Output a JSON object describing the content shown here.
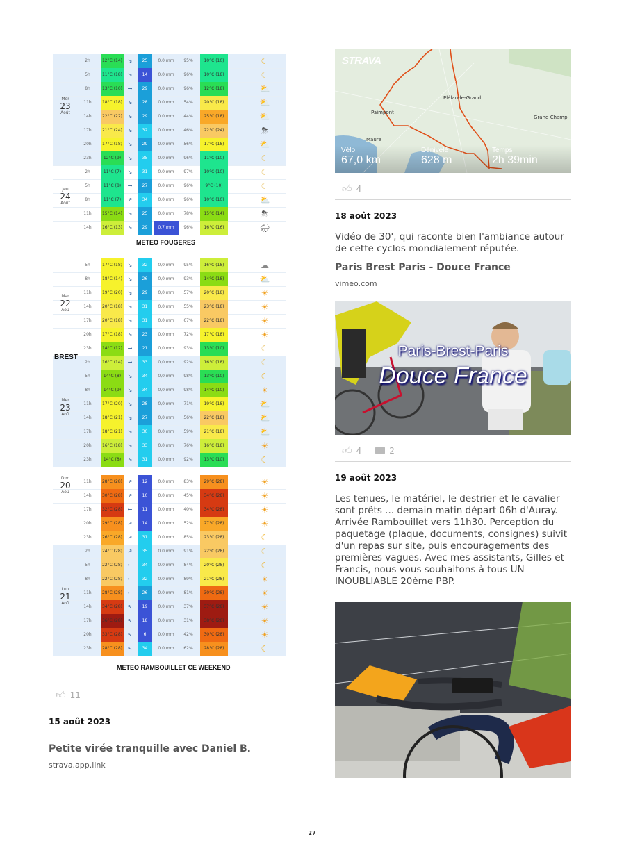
{
  "weather_tables": [
    {
      "id": "fougeres",
      "caption": "METEO FOUGERES",
      "days": [
        {
          "day": "Mer",
          "num": "23",
          "month": "Août",
          "shaded": true,
          "rows": [
            [
              "2h",
              "12°C (14)",
              "↘",
              "25",
              "0.0 mm",
              "95%",
              "10°C (10)",
              "moon"
            ],
            [
              "5h",
              "11°C (18)",
              "↘",
              "14",
              "0.0 mm",
              "96%",
              "10°C (18)",
              "moon-cloud"
            ],
            [
              "8h",
              "13°C (10)",
              "→",
              "29",
              "0.0 mm",
              "96%",
              "12°C (18)",
              "sun-cloud"
            ],
            [
              "11h",
              "18°C (18)",
              "↘",
              "28",
              "0.0 mm",
              "54%",
              "20°C (18)",
              "sun-cloud"
            ],
            [
              "14h",
              "22°C (22)",
              "↘",
              "29",
              "0.0 mm",
              "44%",
              "25°C (18)",
              "sun-cloud"
            ],
            [
              "17h",
              "21°C (24)",
              "↘",
              "32",
              "0.0 mm",
              "46%",
              "22°C (24)",
              "storm-cloud"
            ],
            [
              "20h",
              "17°C (18)",
              "↘",
              "29",
              "0.0 mm",
              "56%",
              "17°C (18)",
              "sun-cloud"
            ],
            [
              "23h",
              "12°C (9)",
              "↘",
              "35",
              "0.0 mm",
              "96%",
              "11°C (10)",
              "moon-cloud"
            ]
          ]
        },
        {
          "day": "Jeu",
          "num": "24",
          "month": "Août",
          "shaded": false,
          "rows": [
            [
              "2h",
              "11°C (7)",
              "↘",
              "31",
              "0.0 mm",
              "97%",
              "10°C (10)",
              "moon-cloud"
            ],
            [
              "5h",
              "11°C (8)",
              "→",
              "27",
              "0.0 mm",
              "96%",
              "9°C (10)",
              "moon-cloud"
            ],
            [
              "8h",
              "11°C (7)",
              "↗",
              "34",
              "0.0 mm",
              "96%",
              "10°C (10)",
              "sun-cloud"
            ],
            [
              "11h",
              "15°C (14)",
              "↘",
              "25",
              "0.0 mm",
              "78%",
              "15°C (14)",
              "storm-cloud"
            ],
            [
              "14h",
              "16°C (13)",
              "↘",
              "29",
              "0.7 mm",
              "96%",
              "16°C (16)",
              "rain-cloud"
            ]
          ]
        }
      ]
    },
    {
      "id": "brest",
      "caption": "BREST",
      "days": [
        {
          "day": "Mar",
          "num": "22",
          "month": "Aoû",
          "shaded": false,
          "rows": [
            [
              "5h",
              "17°C (18)",
              "↘",
              "32",
              "0,0 mm",
              "95%",
              "16°C (18)",
              "cloud"
            ],
            [
              "8h",
              "18°C (14)",
              "↘",
              "26",
              "0,0 mm",
              "93%",
              "14°C (18)",
              "sun-cloud"
            ],
            [
              "11h",
              "19°C (20)",
              "↘",
              "29",
              "0,0 mm",
              "57%",
              "20°C (18)",
              "sun"
            ],
            [
              "14h",
              "20°C (18)",
              "↘",
              "31",
              "0,0 mm",
              "55%",
              "23°C (18)",
              "sun"
            ],
            [
              "17h",
              "20°C (18)",
              "↘",
              "31",
              "0,0 mm",
              "67%",
              "22°C (18)",
              "sun"
            ],
            [
              "20h",
              "17°C (18)",
              "↘",
              "23",
              "0,0 mm",
              "72%",
              "17°C (18)",
              "sun"
            ],
            [
              "23h",
              "14°C (12)",
              "→",
              "21",
              "0,0 mm",
              "93%",
              "13°C (10)",
              "moon-cloud"
            ]
          ]
        },
        {
          "day": "Mer",
          "num": "23",
          "month": "Aoû",
          "shaded": true,
          "rows": [
            [
              "2h",
              "16°C (14)",
              "→",
              "33",
              "0,0 mm",
              "92%",
              "16°C (18)",
              "moon-cloud"
            ],
            [
              "5h",
              "14°C (8)",
              "↘",
              "34",
              "0,0 mm",
              "98%",
              "13°C (10)",
              "moon"
            ],
            [
              "8h",
              "14°C (9)",
              "↘",
              "34",
              "0,0 mm",
              "98%",
              "14°C (10)",
              "sun"
            ],
            [
              "11h",
              "17°C (20)",
              "↘",
              "28",
              "0,0 mm",
              "71%",
              "19°C (18)",
              "sun-cloud"
            ],
            [
              "14h",
              "18°C (21)",
              "↘",
              "27",
              "0,0 mm",
              "56%",
              "22°C (18)",
              "sun-cloud"
            ],
            [
              "17h",
              "18°C (21)",
              "↘",
              "30",
              "0,0 mm",
              "59%",
              "21°C (18)",
              "sun-cloud"
            ],
            [
              "20h",
              "16°C (18)",
              "↘",
              "33",
              "0,0 mm",
              "76%",
              "16°C (18)",
              "sun"
            ],
            [
              "23h",
              "14°C (8)",
              "↘",
              "31",
              "0,0 mm",
              "92%",
              "13°C (10)",
              "moon"
            ]
          ]
        }
      ]
    },
    {
      "id": "rambouillet",
      "caption": "METEO RAMBOUILLET CE WEEKEND",
      "days": [
        {
          "day": "Dim",
          "num": "20",
          "month": "Aoû",
          "shaded": false,
          "rows": [
            [
              "11h",
              "28°C (28)",
              "↗",
              "12",
              "0.0 mm",
              "83%",
              "29°C (28)",
              "sun"
            ],
            [
              "14h",
              "30°C (28)",
              "↗",
              "10",
              "0.0 mm",
              "45%",
              "34°C (28)",
              "sun"
            ],
            [
              "17h",
              "32°C (28)",
              "←",
              "11",
              "0.0 mm",
              "40%",
              "34°C (28)",
              "sun"
            ],
            [
              "20h",
              "29°C (28)",
              "↗",
              "14",
              "0.0 mm",
              "52%",
              "27°C (28)",
              "sun"
            ],
            [
              "23h",
              "26°C (28)",
              "↗",
              "31",
              "0.0 mm",
              "85%",
              "23°C (28)",
              "moon"
            ]
          ]
        },
        {
          "day": "Lun",
          "num": "21",
          "month": "Aoû",
          "shaded": true,
          "rows": [
            [
              "2h",
              "24°C (28)",
              "↗",
              "35",
              "0.0 mm",
              "91%",
              "22°C (28)",
              "moon-cloud"
            ],
            [
              "5h",
              "22°C (28)",
              "←",
              "34",
              "0.0 mm",
              "84%",
              "20°C (28)",
              "moon"
            ],
            [
              "8h",
              "22°C (28)",
              "←",
              "32",
              "0.0 mm",
              "89%",
              "21°C (28)",
              "sun"
            ],
            [
              "11h",
              "28°C (28)",
              "←",
              "26",
              "0.0 mm",
              "81%",
              "30°C (28)",
              "sun"
            ],
            [
              "14h",
              "34°C (28)",
              "↖",
              "19",
              "0.0 mm",
              "37%",
              "37°C (28)",
              "sun"
            ],
            [
              "17h",
              "36°C (28)",
              "↖",
              "18",
              "0.0 mm",
              "31%",
              "38°C (28)",
              "sun"
            ],
            [
              "20h",
              "33°C (28)",
              "↖",
              "6",
              "0.0 mm",
              "42%",
              "30°C (28)",
              "sun"
            ],
            [
              "23h",
              "28°C (28)",
              "↖",
              "34",
              "0.0 mm",
              "62%",
              "28°C (28)",
              "moon"
            ]
          ]
        }
      ]
    }
  ],
  "left_post": {
    "likes": "11",
    "date": "15 août 2023",
    "link_title": "Petite virée tranquille avec Daniel B.",
    "link_domain": "strava.app.link"
  },
  "strava": {
    "logo": "STRAVA",
    "places": [
      "Plélan-le-Grand",
      "Paimpont",
      "Grand Champ",
      "Maure"
    ],
    "stats": [
      {
        "label": "Vélo",
        "value": "67,0 km"
      },
      {
        "label": "Dénivelé",
        "value": "628 m"
      },
      {
        "label": "Temps",
        "value": "2h 39min"
      }
    ],
    "likes": "4"
  },
  "post_18": {
    "date": "18 août 2023",
    "body": "Vidéo de 30', qui raconte bien l'ambiance autour de cette cyclos mondialement réputée.",
    "link_title": "Paris Brest Paris - Douce France",
    "link_domain": "vimeo.com",
    "video_title_1": "Paris-Brest-Paris",
    "video_title_2": "Douce France",
    "likes": "4",
    "comments": "2"
  },
  "post_19": {
    "date": "19 août 2023",
    "body": "Les tenues, le matériel, le destrier et le cavalier sont prêts ... demain matin départ 06h d'Auray. Arrivée Rambouillet vers 11h30. Perception du paquetage (plaque, documents, consignes) suivit d'un repas sur site, puis encouragements des premières vagues. Avec mes assistants, Gilles et Francis, nous vous souhaitons à tous UN INOUBLIABLE 20ème PBP."
  },
  "page_number": "27",
  "colors": {
    "route": "#e0501a",
    "shade": "#e3eefa",
    "text": "#444444",
    "icon_gray": "#bbbbbb"
  }
}
